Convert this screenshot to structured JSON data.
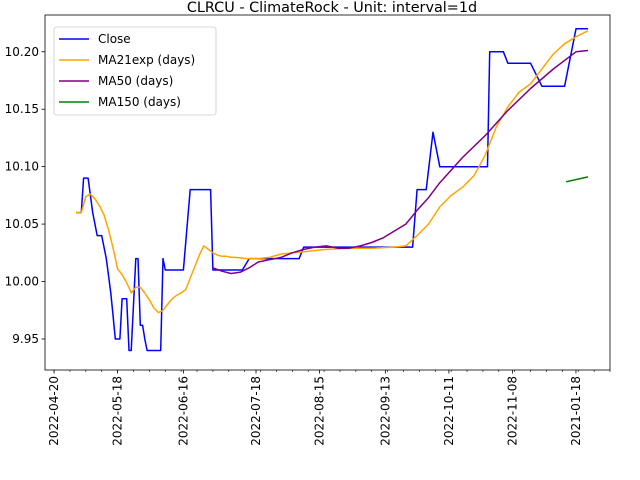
{
  "chart_data": {
    "type": "line",
    "title": "CLRCU - ClimateRock - Unit: interval=1d",
    "xlabel": "",
    "ylabel": "",
    "x_ticks": [
      "2022-04-20",
      "2022-05-18",
      "2022-06-16",
      "2022-07-18",
      "2022-08-15",
      "2022-09-13",
      "2022-10-11",
      "2022-11-08",
      "2021-01-18"
    ],
    "y_ticks": [
      "9.95",
      "10.00",
      "10.05",
      "10.10",
      "10.15",
      "10.20"
    ],
    "xlim": [
      -4,
      245
    ],
    "ylim": [
      9.923,
      10.232
    ],
    "grid": false,
    "legend_position": "top-left",
    "series": [
      {
        "name": "Close",
        "color": "#0000ff",
        "x": [
          10,
          12,
          13,
          15,
          17,
          19,
          21,
          23,
          25,
          26,
          27,
          29,
          30,
          32,
          33,
          34,
          36,
          37,
          38,
          39,
          40,
          41,
          42,
          44,
          47,
          48,
          49,
          50,
          52,
          55,
          56,
          57,
          60,
          63,
          64,
          65,
          66,
          69,
          70,
          71,
          73,
          74,
          75,
          76,
          77,
          78,
          79,
          80,
          83,
          86,
          89,
          90,
          92,
          95,
          98,
          100,
          102,
          105,
          108,
          110,
          113,
          115,
          118,
          120,
          125,
          127,
          130,
          135,
          140,
          145,
          148,
          150,
          151,
          155,
          158,
          160,
          162,
          163,
          164,
          167,
          170,
          175,
          180,
          185,
          187,
          191,
          192,
          195,
          198,
          200,
          204,
          205,
          210,
          215,
          220,
          225,
          230,
          235
        ],
        "y": [
          10.06,
          10.06,
          10.09,
          10.09,
          10.06,
          10.04,
          10.04,
          10.02,
          9.99,
          9.97,
          9.95,
          9.95,
          9.985,
          9.985,
          9.94,
          9.94,
          10.02,
          10.02,
          9.962,
          9.962,
          9.95,
          9.94,
          9.94,
          9.94,
          9.94,
          10.02,
          10.01,
          10.01,
          10.01,
          10.01,
          10.01,
          10.01,
          10.08,
          10.08,
          10.08,
          10.08,
          10.08,
          10.08,
          10.01,
          10.01,
          10.01,
          10.01,
          10.01,
          10.01,
          10.01,
          10.01,
          10.01,
          10.01,
          10.01,
          10.02,
          10.02,
          10.02,
          10.02,
          10.02,
          10.02,
          10.02,
          10.02,
          10.02,
          10.02,
          10.03,
          10.03,
          10.03,
          10.03,
          10.03,
          10.03,
          10.03,
          10.03,
          10.03,
          10.03,
          10.03,
          10.03,
          10.03,
          10.03,
          10.03,
          10.03,
          10.08,
          10.08,
          10.08,
          10.08,
          10.13,
          10.1,
          10.1,
          10.1,
          10.1,
          10.1,
          10.1,
          10.2,
          10.2,
          10.2,
          10.19,
          10.19,
          10.19,
          10.19,
          10.17,
          10.17,
          10.17,
          10.22,
          10.22
        ]
      },
      {
        "name": "MA21exp (days)",
        "color": "#ffa500",
        "x": [
          10,
          12,
          14,
          16,
          18,
          20,
          22,
          24,
          26,
          28,
          30,
          32,
          34,
          36,
          38,
          40,
          42,
          44,
          46,
          48,
          50,
          52,
          54,
          56,
          58,
          60,
          62,
          64,
          66,
          68,
          70,
          72,
          74,
          76,
          78,
          80,
          85,
          90,
          95,
          100,
          110,
          120,
          130,
          140,
          150,
          155,
          160,
          165,
          170,
          175,
          180,
          185,
          190,
          195,
          200,
          205,
          210,
          215,
          220,
          225,
          230,
          235
        ],
        "y": [
          10.06,
          10.06,
          10.074,
          10.076,
          10.072,
          10.066,
          10.058,
          10.045,
          10.029,
          10.011,
          10.006,
          9.999,
          9.99,
          9.995,
          9.995,
          9.99,
          9.984,
          9.977,
          9.973,
          9.975,
          9.98,
          9.985,
          9.988,
          9.99,
          9.993,
          10.003,
          10.013,
          10.023,
          10.031,
          10.028,
          10.025,
          10.023,
          10.022,
          10.022,
          10.021,
          10.021,
          10.02,
          10.02,
          10.021,
          10.024,
          10.026,
          10.028,
          10.029,
          10.029,
          10.03,
          10.031,
          10.04,
          10.05,
          10.065,
          10.075,
          10.082,
          10.092,
          10.11,
          10.135,
          10.152,
          10.165,
          10.172,
          10.185,
          10.198,
          10.207,
          10.213,
          10.218
        ]
      },
      {
        "name": "MA50 (days)",
        "color": "#800080",
        "x": [
          70,
          74,
          78,
          82,
          86,
          90,
          95,
          100,
          105,
          110,
          115,
          120,
          125,
          130,
          135,
          140,
          145,
          150,
          155,
          160,
          165,
          170,
          175,
          180,
          190,
          200,
          210,
          220,
          230,
          235
        ],
        "y": [
          10.012,
          10.009,
          10.007,
          10.008,
          10.012,
          10.017,
          10.019,
          10.021,
          10.025,
          10.028,
          10.03,
          10.031,
          10.029,
          10.029,
          10.031,
          10.034,
          10.038,
          10.044,
          10.05,
          10.062,
          10.073,
          10.086,
          10.097,
          10.108,
          10.127,
          10.149,
          10.168,
          10.185,
          10.2,
          10.201
        ]
      },
      {
        "name": "MA150 (days)",
        "color": "#008000",
        "x": [
          226,
          235
        ],
        "y": [
          10.087,
          10.091
        ]
      }
    ]
  }
}
